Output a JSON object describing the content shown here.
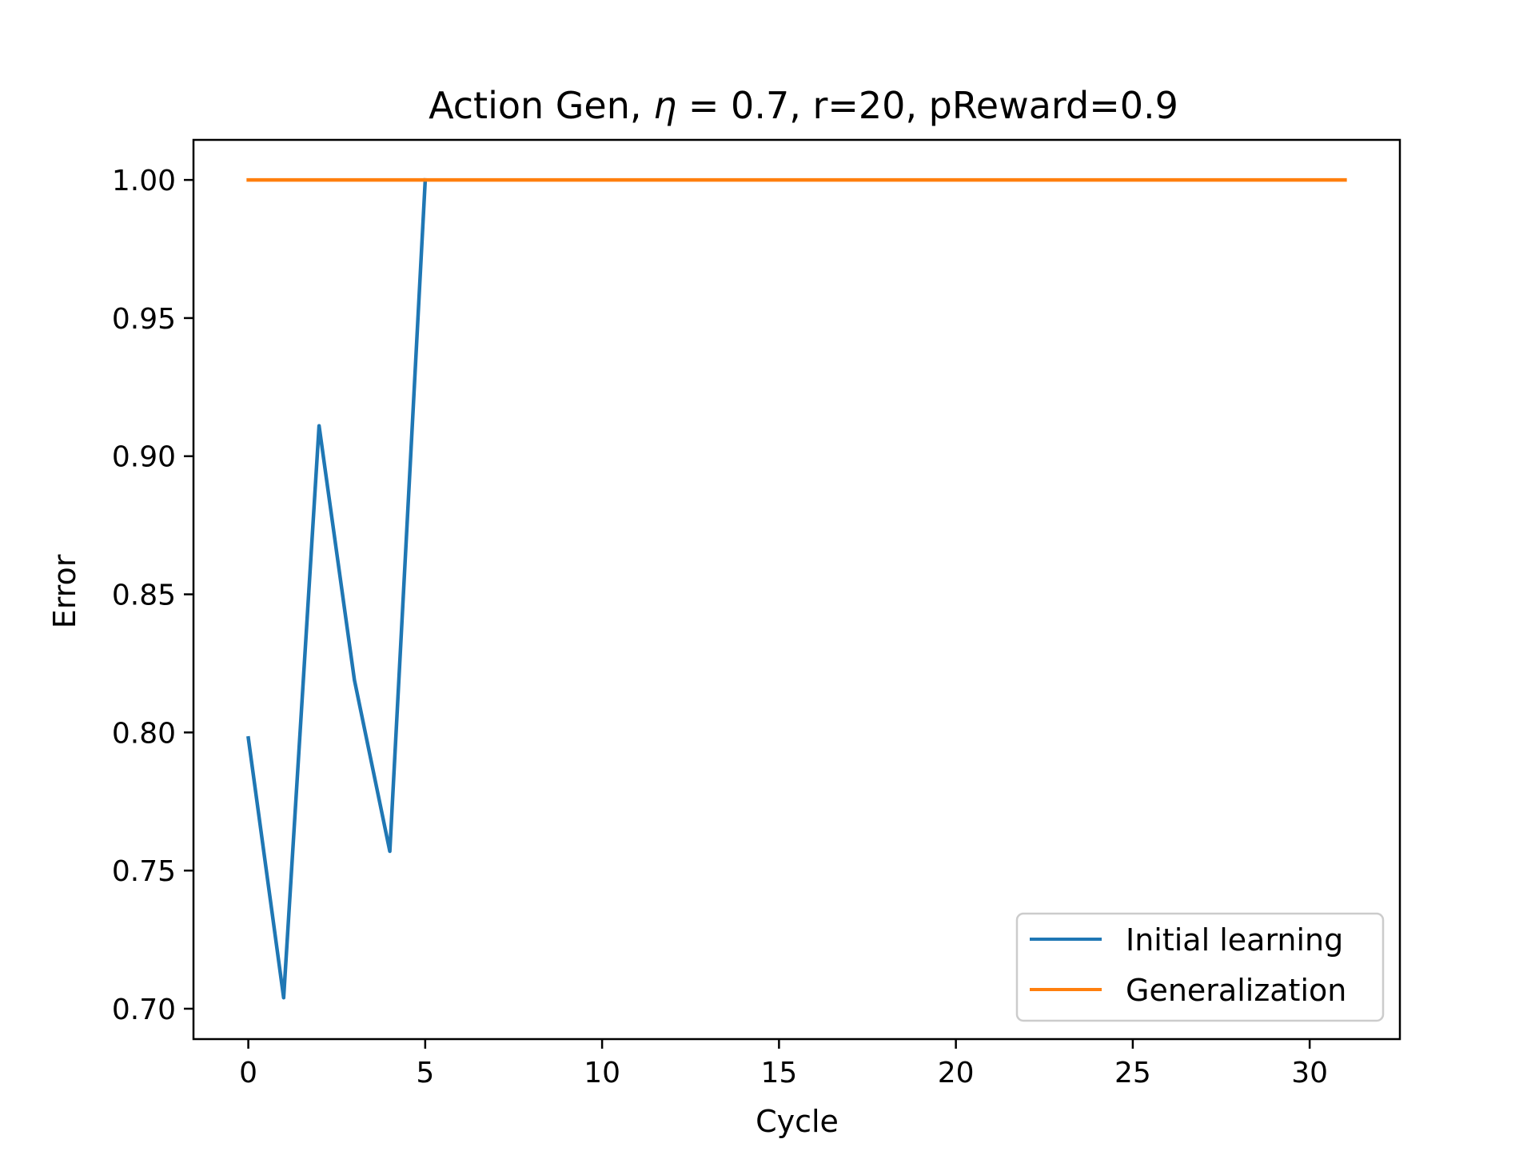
{
  "chart_data": {
    "type": "line",
    "title_parts": [
      "Action Gen, ",
      "η",
      " = 0.7, r=20, pReward=0.9"
    ],
    "xlabel": "Cycle",
    "ylabel": "Error",
    "xlim": [
      -1.55,
      32.55
    ],
    "ylim": [
      0.689,
      1.0145
    ],
    "xticks": [
      0,
      5,
      10,
      15,
      20,
      25,
      30
    ],
    "xtick_labels": [
      "0",
      "5",
      "10",
      "15",
      "20",
      "25",
      "30"
    ],
    "yticks": [
      0.7,
      0.75,
      0.8,
      0.85,
      0.9,
      0.95,
      1.0
    ],
    "ytick_labels": [
      "0.70",
      "0.75",
      "0.80",
      "0.85",
      "0.90",
      "0.95",
      "1.00"
    ],
    "grid": false,
    "legend_position": "lower-right",
    "series": [
      {
        "name": "Initial learning",
        "color": "#1f77b4",
        "x": [
          0,
          1,
          2,
          3,
          4,
          5
        ],
        "y": [
          0.798,
          0.704,
          0.911,
          0.819,
          0.757,
          1.0
        ]
      },
      {
        "name": "Generalization",
        "color": "#ff7f0e",
        "x": [
          0,
          31
        ],
        "y": [
          1.0,
          1.0
        ]
      }
    ]
  }
}
